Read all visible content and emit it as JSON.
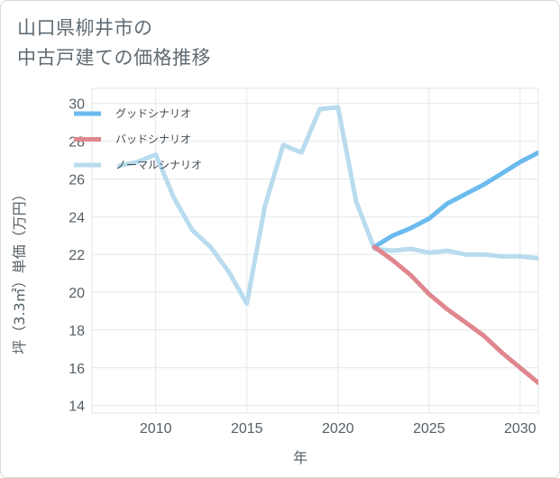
{
  "title": {
    "line1": "山口県柳井市の",
    "line2": "中古戸建ての価格推移"
  },
  "chart_data": {
    "type": "line",
    "xlabel": "年",
    "ylabel": "坪（3.3㎡）単価（万円）",
    "xlim": [
      2006.5,
      2031
    ],
    "ylim": [
      13.6,
      30.8
    ],
    "xticks": [
      2010,
      2015,
      2020,
      2025,
      2030
    ],
    "yticks": [
      14,
      16,
      18,
      20,
      22,
      24,
      26,
      28,
      30
    ],
    "grid": true,
    "legend_position": "top-left",
    "series": [
      {
        "name": "グッドシナリオ",
        "color": "#6bbbee",
        "x": [
          2022,
          2023,
          2024,
          2025,
          2026,
          2027,
          2028,
          2029,
          2030,
          2031
        ],
        "y": [
          22.4,
          23.0,
          23.4,
          23.9,
          24.7,
          25.2,
          25.7,
          26.3,
          26.9,
          27.4
        ]
      },
      {
        "name": "バッドシナリオ",
        "color": "#e0868e",
        "x": [
          2022,
          2023,
          2024,
          2025,
          2026,
          2027,
          2028,
          2029,
          2030,
          2031
        ],
        "y": [
          22.4,
          21.7,
          20.9,
          19.9,
          19.1,
          18.4,
          17.7,
          16.8,
          16.0,
          15.2
        ]
      },
      {
        "name": "ノーマルシナリオ",
        "color": "#b8dced",
        "x": [
          2008,
          2009,
          2010,
          2011,
          2012,
          2013,
          2014,
          2015,
          2016,
          2017,
          2018,
          2019,
          2020,
          2021,
          2022,
          2023,
          2024,
          2025,
          2026,
          2027,
          2028,
          2029,
          2030,
          2031
        ],
        "y": [
          26.7,
          26.9,
          27.3,
          25.0,
          23.3,
          22.4,
          21.1,
          19.4,
          24.6,
          27.8,
          27.4,
          29.7,
          29.8,
          24.8,
          22.3,
          22.2,
          22.3,
          22.1,
          22.2,
          22.0,
          22.0,
          21.9,
          21.9,
          21.8
        ]
      }
    ]
  }
}
